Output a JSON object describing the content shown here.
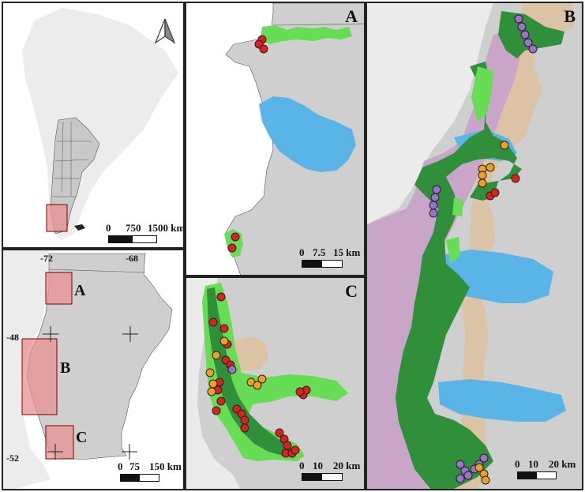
{
  "panels": {
    "overview": {
      "north_arrow": "north-arrow-icon",
      "scale": {
        "ticks": [
          "0",
          "750",
          "1500 km"
        ]
      }
    },
    "province": {
      "coords": {
        "lon1": "-72",
        "lon2": "-68",
        "lat1": "-48",
        "lat2": "-52"
      },
      "boxes": {
        "a": "A",
        "b": "B",
        "c": "C"
      },
      "scale": {
        "ticks": [
          "0",
          "75",
          "150 km"
        ]
      }
    },
    "a": {
      "label": "A",
      "scale": {
        "ticks": [
          "0",
          "7.5",
          "15 km"
        ]
      }
    },
    "b": {
      "label": "B",
      "scale": {
        "ticks": [
          "0",
          "10",
          "20 km"
        ]
      }
    },
    "c": {
      "label": "C",
      "scale": {
        "ticks": [
          "0",
          "10",
          "20 km"
        ]
      }
    }
  },
  "colors": {
    "land": "#cfcfcf",
    "land_light": "#ebebeb",
    "lake": "#5ab4e8",
    "forest_dark": "#2f8f3a",
    "forest_light": "#66dd55",
    "purple_zone": "#c8a0c8",
    "tan_zone": "#dcc3a6",
    "red_point": "#e02020",
    "orange_point": "#f0a020",
    "purple_point": "#a070d0",
    "highlight_box": "#e89090"
  }
}
